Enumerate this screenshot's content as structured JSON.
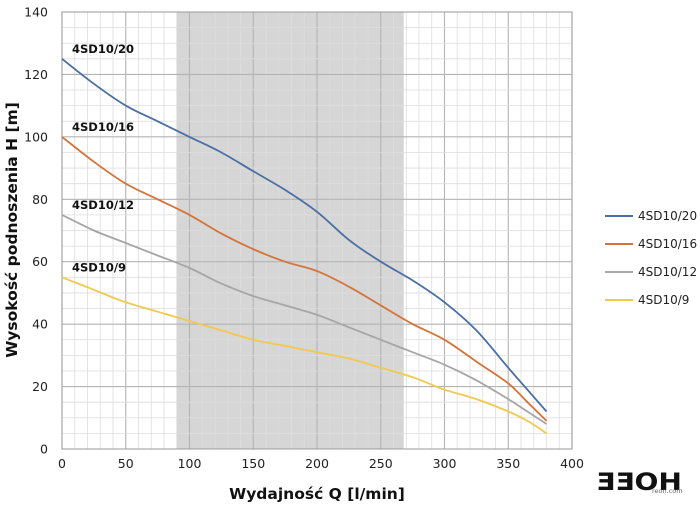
{
  "chart_data": {
    "type": "line",
    "xlabel": "Wydajność Q [l/min]",
    "ylabel": "Wysokość podnoszenia H [m]",
    "xlim": [
      0,
      400
    ],
    "ylim": [
      0,
      140
    ],
    "xticks": [
      0,
      50,
      100,
      150,
      200,
      250,
      300,
      350,
      400
    ],
    "yticks": [
      0,
      20,
      40,
      60,
      80,
      100,
      120,
      140
    ],
    "grid": true,
    "shaded_x_range": [
      90,
      268
    ],
    "shaded_color": "#d6d6d6",
    "legend_position": "right",
    "series": [
      {
        "name": "4SD10/20",
        "color": "#4a6fa5",
        "x": [
          0,
          25,
          50,
          75,
          100,
          125,
          150,
          175,
          200,
          225,
          250,
          275,
          300,
          325,
          350,
          365,
          380
        ],
        "y": [
          125,
          117,
          110,
          105,
          100,
          95,
          89,
          83,
          76,
          67,
          60,
          54,
          47,
          38,
          26,
          19,
          12
        ]
      },
      {
        "name": "4SD10/16",
        "color": "#d4743a",
        "x": [
          0,
          25,
          50,
          75,
          100,
          125,
          150,
          175,
          200,
          225,
          250,
          275,
          300,
          325,
          350,
          365,
          380
        ],
        "y": [
          100,
          92,
          85,
          80,
          75,
          69,
          64,
          60,
          57,
          52,
          46,
          40,
          35,
          28,
          21,
          15,
          9
        ]
      },
      {
        "name": "4SD10/12",
        "color": "#a6a6a6",
        "x": [
          0,
          25,
          50,
          75,
          100,
          125,
          150,
          175,
          200,
          225,
          250,
          275,
          300,
          325,
          350,
          365,
          380
        ],
        "y": [
          75,
          70,
          66,
          62,
          58,
          53,
          49,
          46,
          43,
          39,
          35,
          31,
          27,
          22,
          16,
          12,
          8
        ]
      },
      {
        "name": "4SD10/9",
        "color": "#f2c94c",
        "x": [
          0,
          25,
          50,
          75,
          100,
          125,
          150,
          175,
          200,
          225,
          250,
          275,
          300,
          325,
          350,
          365,
          380
        ],
        "y": [
          55,
          51,
          47,
          44,
          41,
          38,
          35,
          33,
          31,
          29,
          26,
          23,
          19,
          16,
          12,
          9,
          5
        ]
      }
    ]
  },
  "logo": {
    "text": "ƎƎOH",
    "sub": "reon.com"
  }
}
